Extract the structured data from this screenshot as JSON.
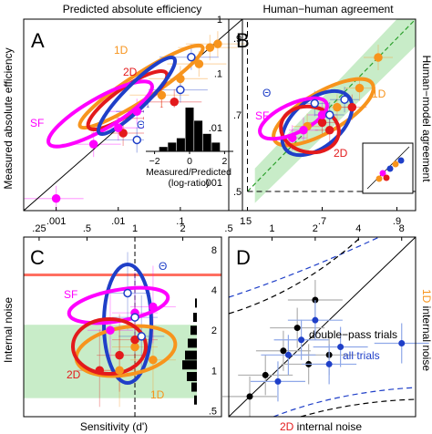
{
  "figure": {
    "panelA": {
      "letter": "A",
      "top_title": "Predicted absolute efficiency",
      "ylabel": "Measured absolute efficiency",
      "bottom_ticks": [
        ".001",
        ".01",
        ".1",
        "1"
      ],
      "left_ticks": [
        ".001",
        ".01",
        ".1",
        "1"
      ],
      "right_ticks": [
        ".001",
        ".01",
        ".1",
        "1"
      ],
      "label_1d": "1D",
      "label_2d": "2D",
      "label_sf": "SF",
      "label_theta": "Θ",
      "inset": {
        "xlabel_line1": "Measured/Predicted",
        "xlabel_line2": "(log-ratio)",
        "ticks": [
          "−2",
          "0",
          "2"
        ]
      }
    },
    "panelB": {
      "letter": "B",
      "top_title": "Human−human agreement",
      "ylabel_right": "Human−model agreement",
      "bottom_ticks": [
        ".5",
        ".7",
        ".9"
      ],
      "left_ticks": [
        ".5",
        ".7",
        ".9"
      ],
      "label_1d": "1D",
      "label_2d": "2D",
      "label_sf": "SF",
      "label_theta": "Θ"
    },
    "panelC": {
      "letter": "C",
      "ylabel": "Internal noise",
      "xlabel": "Sensitivity (d')",
      "top_ticks": [
        ".25",
        ".5",
        "1",
        "2"
      ],
      "right_ticks": [
        ".5",
        "1",
        "2",
        "4",
        "8"
      ],
      "label_1d": "1D",
      "label_2d": "2D",
      "label_sf": "SF",
      "label_theta": "Θ"
    },
    "panelD": {
      "letter": "D",
      "ylabel_right_colored": "1D",
      "ylabel_right_rest": " internal noise",
      "xlabel_colored": "2D",
      "xlabel_rest": " internal noise",
      "top_ticks": [
        ".5",
        "1",
        "2",
        "4",
        "8"
      ],
      "label_double_pass": "double−pass trials",
      "label_all_trials": "all trials"
    }
  },
  "colors": {
    "oned": "#f7941d",
    "twod": "#e31a1c",
    "sf": "#ff00ff",
    "theta": "#1f3fc8",
    "black": "#000000",
    "green_band": "#c8ecc8",
    "green_line": "#2ca02c",
    "red_line": "#ff6f61",
    "grey_bar": "#b0b0b0",
    "blue_err": "#8fa8e8"
  },
  "chart_data": [
    {
      "panel": "A",
      "type": "scatter",
      "title": "Predicted absolute efficiency",
      "ylabel": "Measured absolute efficiency",
      "xscale": "log",
      "yscale": "log",
      "xlim": [
        0.0003,
        1
      ],
      "ylim": [
        0.0003,
        1
      ],
      "reference_line": "identity",
      "series": [
        {
          "name": "1D",
          "points": [
            [
              0.3,
              0.3
            ],
            [
              0.2,
              0.15
            ],
            [
              0.1,
              0.08
            ],
            [
              0.05,
              0.04
            ],
            [
              0.4,
              0.35
            ]
          ]
        },
        {
          "name": "2D",
          "points": [
            [
              0.08,
              0.03
            ],
            [
              0.03,
              0.015
            ],
            [
              0.012,
              0.008
            ],
            [
              0.05,
              0.02
            ]
          ]
        },
        {
          "name": "SF",
          "points": [
            [
              0.01,
              0.01
            ],
            [
              0.004,
              0.005
            ],
            [
              0.02,
              0.02
            ],
            [
              0.001,
              0.0005
            ]
          ]
        },
        {
          "name": "Θ",
          "points": [
            [
              0.1,
              0.05
            ],
            [
              0.03,
              0.02
            ],
            [
              0.02,
              0.006
            ],
            [
              0.15,
              0.2
            ]
          ]
        }
      ],
      "inset": {
        "type": "histogram",
        "xlabel": "Measured/Predicted (log-ratio)",
        "bins": [
          -1.5,
          -1.0,
          -0.5,
          0,
          0.5,
          1.0,
          1.5
        ],
        "counts": [
          1,
          2,
          3,
          10,
          7,
          4,
          2
        ]
      }
    },
    {
      "panel": "B",
      "type": "scatter",
      "title": "Human−human agreement",
      "ylabel": "Human−model agreement",
      "xlim": [
        0.5,
        0.95
      ],
      "ylim": [
        0.5,
        0.95
      ],
      "series": [
        {
          "name": "1D",
          "points": [
            [
              0.8,
              0.77
            ],
            [
              0.85,
              0.85
            ],
            [
              0.74,
              0.72
            ],
            [
              0.66,
              0.67
            ]
          ]
        },
        {
          "name": "2D",
          "points": [
            [
              0.72,
              0.66
            ],
            [
              0.78,
              0.72
            ],
            [
              0.7,
              0.68
            ]
          ]
        },
        {
          "name": "SF",
          "points": [
            [
              0.65,
              0.66
            ],
            [
              0.62,
              0.64
            ],
            [
              0.7,
              0.7
            ]
          ]
        },
        {
          "name": "Θ",
          "points": [
            [
              0.68,
              0.73
            ],
            [
              0.76,
              0.74
            ],
            [
              0.72,
              0.7
            ]
          ]
        }
      ]
    },
    {
      "panel": "C",
      "type": "scatter",
      "xlabel": "Sensitivity (d')",
      "ylabel": "Internal noise",
      "xscale": "log",
      "yscale": "log",
      "xlim": [
        0.2,
        3.5
      ],
      "ylim": [
        0.45,
        10
      ],
      "series": [
        {
          "name": "1D",
          "points": [
            [
              1.0,
              1.5
            ],
            [
              1.3,
              1.2
            ],
            [
              0.8,
              1.0
            ]
          ]
        },
        {
          "name": "2D",
          "points": [
            [
              0.8,
              1.3
            ],
            [
              0.6,
              1.0
            ],
            [
              1.0,
              1.7
            ]
          ]
        },
        {
          "name": "SF",
          "points": [
            [
              1.0,
              2.7
            ],
            [
              0.7,
              2.0
            ],
            [
              1.3,
              3.0
            ]
          ]
        },
        {
          "name": "Θ",
          "points": [
            [
              1.0,
              2.5
            ],
            [
              1.1,
              1.8
            ],
            [
              0.9,
              3.8
            ]
          ]
        }
      ]
    },
    {
      "panel": "D",
      "type": "scatter",
      "xlabel": "2D internal noise",
      "ylabel": "1D internal noise",
      "xscale": "log",
      "yscale": "log",
      "xlim": [
        0.5,
        10
      ],
      "ylim": [
        0.5,
        10
      ],
      "reference_line": "identity",
      "series": [
        {
          "name": "double−pass trials",
          "points": [
            [
              2.0,
              3.5
            ],
            [
              1.5,
              2.2
            ],
            [
              1.2,
              1.5
            ],
            [
              0.9,
              1.0
            ],
            [
              2.5,
              1.4
            ],
            [
              0.7,
              0.7
            ],
            [
              1.8,
              1.2
            ]
          ]
        },
        {
          "name": "all trials",
          "points": [
            [
              2.0,
              2.5
            ],
            [
              1.6,
              1.8
            ],
            [
              1.3,
              1.4
            ],
            [
              3.0,
              1.6
            ],
            [
              2.5,
              1.2
            ],
            [
              1.1,
              0.9
            ],
            [
              8.0,
              1.7
            ]
          ]
        }
      ]
    }
  ]
}
